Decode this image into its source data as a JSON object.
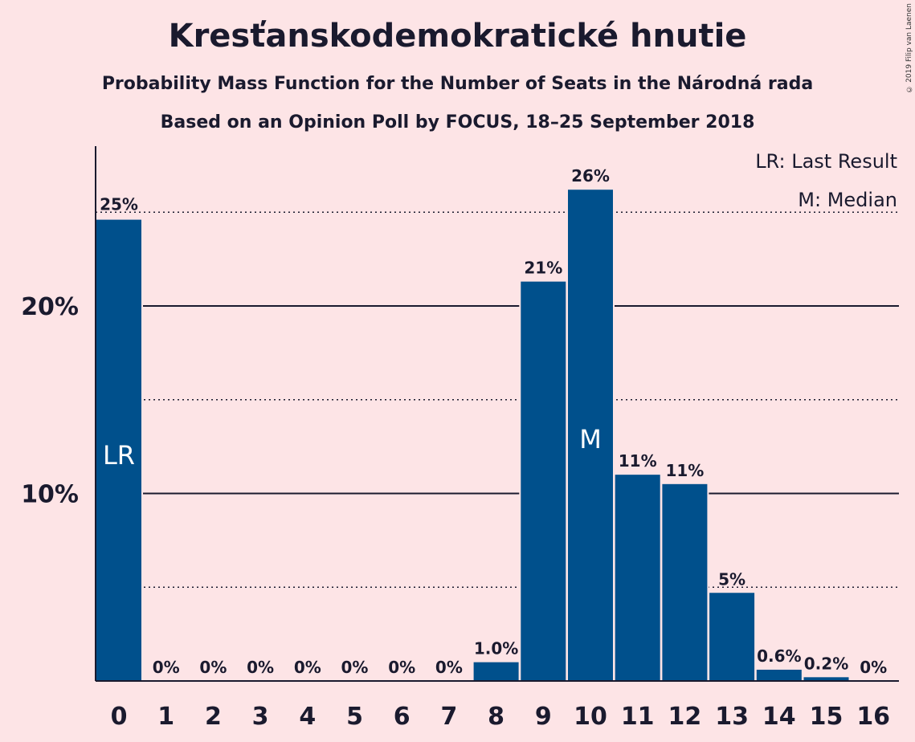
{
  "title": "Kresťanskodemokratické hnutie",
  "subtitle1": "Probability Mass Function for the Number of Seats in the Národná rada",
  "subtitle2": "Based on an Opinion Poll by FOCUS, 18–25 September 2018",
  "copyright": "© 2019 Filip van Laenen",
  "colors": {
    "background": "#fde4e6",
    "bar": "#00508c",
    "text": "#1a1a2e"
  },
  "chart_data": {
    "type": "bar",
    "categories": [
      "0",
      "1",
      "2",
      "3",
      "4",
      "5",
      "6",
      "7",
      "8",
      "9",
      "10",
      "11",
      "12",
      "13",
      "14",
      "15",
      "16"
    ],
    "values": [
      24.6,
      0,
      0,
      0,
      0,
      0,
      0,
      0,
      1.0,
      21.3,
      26.2,
      11.0,
      10.5,
      4.7,
      0.6,
      0.2,
      0
    ],
    "data_labels": [
      "25%",
      "0%",
      "0%",
      "0%",
      "0%",
      "0%",
      "0%",
      "0%",
      "1.0%",
      "21%",
      "26%",
      "11%",
      "11%",
      "5%",
      "0.6%",
      "0.2%",
      "0%"
    ],
    "ylim": [
      0,
      28
    ],
    "yticks": [
      10,
      20
    ],
    "ytick_labels": [
      "10%",
      "20%"
    ],
    "minor_gridlines": [
      5,
      15,
      25
    ],
    "annotations": [
      {
        "category": "0",
        "text": "LR"
      },
      {
        "category": "10",
        "text": "M"
      }
    ],
    "legend": [
      "LR: Last Result",
      "M: Median"
    ],
    "legend_position": "top-right"
  }
}
